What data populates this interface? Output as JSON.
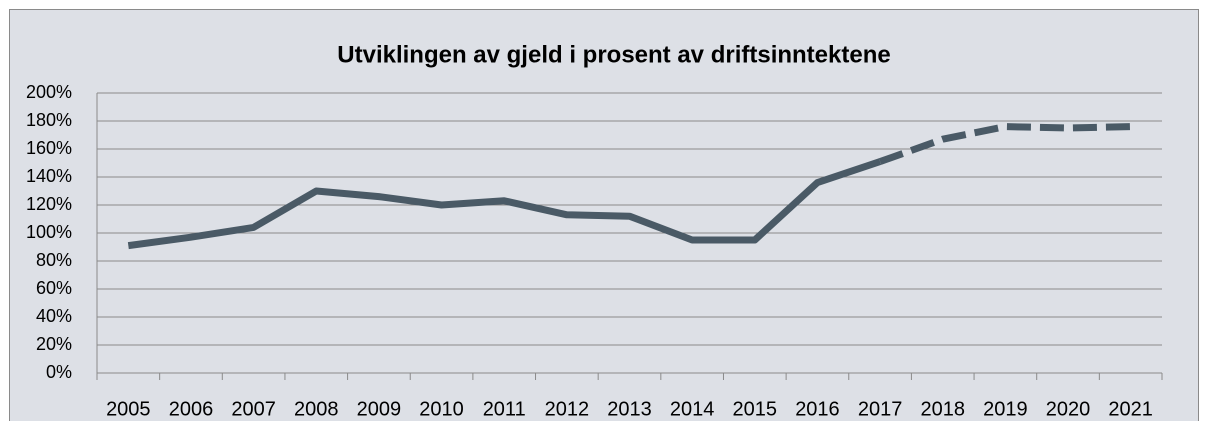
{
  "chart_data": {
    "type": "line",
    "title": "Utviklingen av gjeld i prosent av driftsinntektene",
    "categories": [
      "2005",
      "2006",
      "2007",
      "2008",
      "2009",
      "2010",
      "2011",
      "2012",
      "2013",
      "2014",
      "2015",
      "2016",
      "2017",
      "2018",
      "2019",
      "2020",
      "2021"
    ],
    "values": [
      91,
      97,
      104,
      130,
      126,
      120,
      123,
      113,
      112,
      95,
      95,
      136,
      151,
      167,
      176,
      175,
      176
    ],
    "color": "#4a5a66",
    "dashed_from": "2017",
    "ylim": [
      0,
      200
    ],
    "yticks": [
      {
        "value": 0,
        "label": "0%"
      },
      {
        "value": 20,
        "label": "20%"
      },
      {
        "value": 40,
        "label": "40%"
      },
      {
        "value": 60,
        "label": "60%"
      },
      {
        "value": 80,
        "label": "80%"
      },
      {
        "value": 100,
        "label": "100%"
      },
      {
        "value": 120,
        "label": "120%"
      },
      {
        "value": 140,
        "label": "140%"
      },
      {
        "value": 160,
        "label": "160%"
      },
      {
        "value": 180,
        "label": "180%"
      },
      {
        "value": 200,
        "label": "200%"
      }
    ],
    "grid": true
  }
}
